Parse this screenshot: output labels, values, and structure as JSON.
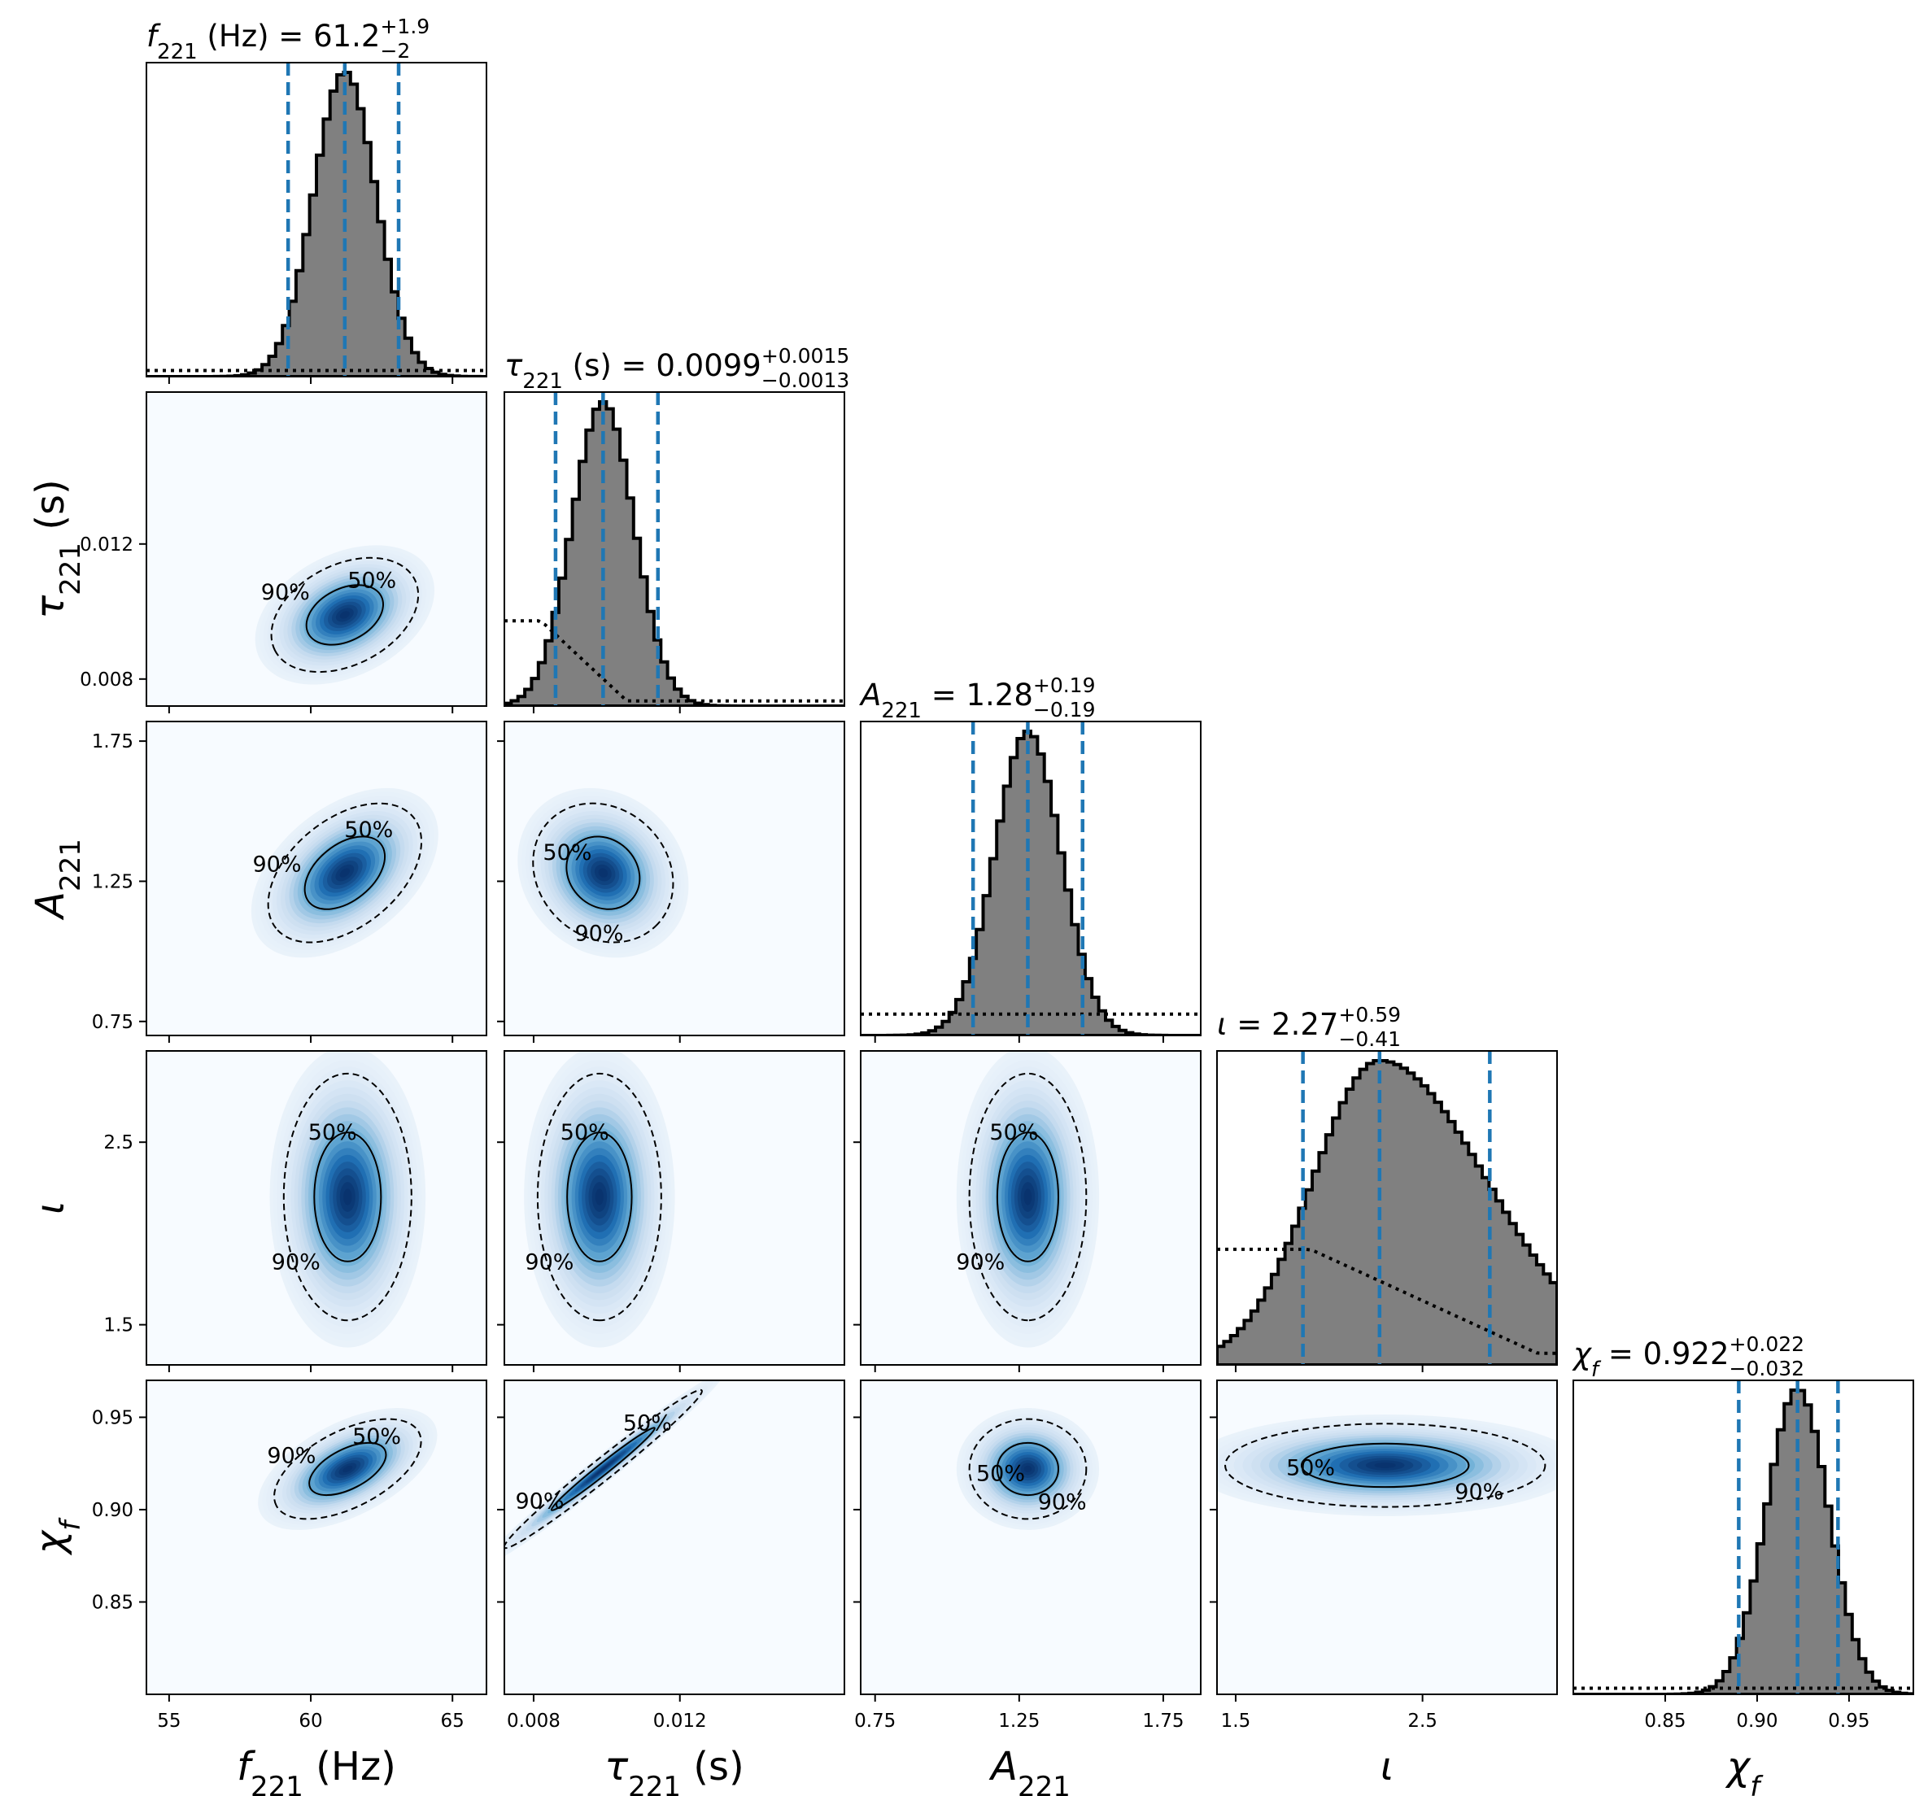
{
  "chart_data": {
    "type": "corner",
    "parameters": [
      {
        "key": "f221",
        "axis_label": "f221 (Hz)",
        "title": "f221 (Hz) = 61.2 +1.9 −2",
        "range": [
          54.2,
          66.2
        ],
        "ticks": [
          55,
          60,
          65
        ],
        "tick_labels": [
          "55",
          "60",
          "65"
        ],
        "median": 61.2,
        "upper_error": "+1.9",
        "lower_error": "−2",
        "quantiles": [
          59.2,
          61.2,
          63.1
        ],
        "posterior_sd": 1.1,
        "prior_level": 0.02
      },
      {
        "key": "tau221",
        "axis_label": "τ221 (s)",
        "title": "τ221 (s) = 0.0099 +0.0015 −0.0013",
        "range": [
          0.0072,
          0.0165
        ],
        "ticks": [
          0.008,
          0.012
        ],
        "tick_labels": [
          "0.008",
          "0.012"
        ],
        "median": 0.0099,
        "upper_error": "+0.0015",
        "lower_error": "−0.0013",
        "quantiles": [
          0.0086,
          0.0099,
          0.0114
        ],
        "posterior_sd": 0.00085,
        "prior_level": 0.28
      },
      {
        "key": "A221",
        "axis_label": "A221",
        "title": "A221 = 1.28 +0.19 −0.19",
        "range": [
          0.7,
          1.88
        ],
        "ticks": [
          0.75,
          1.25,
          1.75
        ],
        "tick_labels": [
          "0.75",
          "1.25",
          "1.75"
        ],
        "median": 1.28,
        "upper_error": "+0.19",
        "lower_error": "−0.19",
        "quantiles": [
          1.09,
          1.28,
          1.47
        ],
        "posterior_sd": 0.115,
        "prior_level": 0.07
      },
      {
        "key": "iota",
        "axis_label": "ι",
        "title": "ι = 2.27 +0.59 −0.41",
        "range": [
          1.4,
          3.22
        ],
        "ticks": [
          1.5,
          2.5
        ],
        "tick_labels": [
          "1.5",
          "2.5"
        ],
        "median": 2.27,
        "upper_error": "+0.59",
        "lower_error": "−0.41",
        "quantiles": [
          1.86,
          2.27,
          2.86
        ],
        "posterior_sd": 0.36,
        "prior_level": 0.38
      },
      {
        "key": "chif",
        "axis_label": "χf",
        "title": "χf = 0.922 +0.022 −0.032",
        "range": [
          0.8,
          0.985
        ],
        "ticks": [
          0.85,
          0.9,
          0.95
        ],
        "tick_labels": [
          "0.85",
          "0.90",
          "0.95"
        ],
        "median": 0.922,
        "upper_error": "+0.022",
        "lower_error": "−0.032",
        "quantiles": [
          0.89,
          0.922,
          0.944
        ],
        "posterior_sd": 0.017,
        "prior_level": 0.02
      }
    ],
    "row_ticks": {
      "tau221": {
        "ticks": [
          0.008,
          0.012
        ],
        "tick_labels": [
          "0.008",
          "0.012"
        ],
        "range": [
          0.0072,
          0.0165
        ]
      },
      "A221": {
        "ticks": [
          0.75,
          1.25,
          1.75
        ],
        "tick_labels": [
          "0.75",
          "1.25",
          "1.75"
        ],
        "range": [
          0.7,
          1.82
        ]
      },
      "iota": {
        "ticks": [
          1.5,
          2.5
        ],
        "tick_labels": [
          "1.5",
          "2.5"
        ],
        "range": [
          1.28,
          3.0
        ]
      },
      "chif": {
        "ticks": [
          0.85,
          0.9,
          0.95
        ],
        "tick_labels": [
          "0.85",
          "0.90",
          "0.95"
        ],
        "range": [
          0.8,
          0.97
        ]
      }
    },
    "pairs": [
      {
        "x": "f221",
        "y": "tau221",
        "center": [
          61.2,
          0.0099
        ],
        "spread": [
          1.15,
          0.00075
        ],
        "rho": 0.35
      },
      {
        "x": "f221",
        "y": "A221",
        "center": [
          61.2,
          1.28
        ],
        "spread": [
          1.2,
          0.11
        ],
        "rho": 0.45
      },
      {
        "x": "tau221",
        "y": "A221",
        "center": [
          0.0099,
          1.28
        ],
        "spread": [
          0.00085,
          0.11
        ],
        "rho": -0.15
      },
      {
        "x": "f221",
        "y": "iota",
        "center": [
          61.3,
          2.2
        ],
        "spread": [
          1.0,
          0.3
        ],
        "rho": 0.0
      },
      {
        "x": "tau221",
        "y": "iota",
        "center": [
          0.0098,
          2.2
        ],
        "spread": [
          0.00075,
          0.3
        ],
        "rho": 0.0
      },
      {
        "x": "A221",
        "y": "iota",
        "center": [
          1.28,
          2.2
        ],
        "spread": [
          0.09,
          0.3
        ],
        "rho": 0.0
      },
      {
        "x": "f221",
        "y": "chif",
        "center": [
          61.3,
          0.922
        ],
        "spread": [
          1.15,
          0.012
        ],
        "rho": 0.55
      },
      {
        "x": "tau221",
        "y": "chif",
        "center": [
          0.0099,
          0.922
        ],
        "spread": [
          0.0012,
          0.019
        ],
        "rho": 0.985
      },
      {
        "x": "A221",
        "y": "chif",
        "center": [
          1.28,
          0.922
        ],
        "spread": [
          0.09,
          0.012
        ],
        "rho": 0.0
      },
      {
        "x": "iota",
        "y": "chif",
        "center": [
          2.3,
          0.924
        ],
        "spread": [
          0.38,
          0.01
        ],
        "rho": 0.0
      }
    ],
    "contour_levels": [
      "50%",
      "90%"
    ],
    "colors": {
      "histogram_fill": "#808080",
      "histogram_edge": "#000000",
      "quantile_lines": "#1f77b4",
      "density_low": "#f7fbff",
      "density_high": "#08306b"
    }
  }
}
